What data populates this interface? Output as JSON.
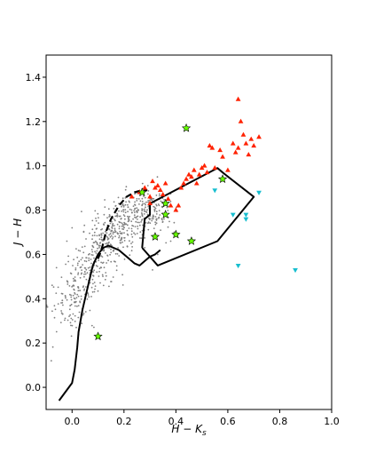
{
  "chart_data": {
    "type": "scatter",
    "xlabel_main": "H",
    "xlabel_sep": " − ",
    "xlabel_var": "K",
    "xlabel_sub": "s",
    "ylabel_main": "J",
    "ylabel_sep": " − ",
    "ylabel_var": "H",
    "xlim": [
      -0.1,
      1.0
    ],
    "ylim": [
      -0.1,
      1.5
    ],
    "x_ticks": [
      0.0,
      0.2,
      0.4,
      0.6,
      0.8,
      1.0
    ],
    "x_tick_labels": [
      "0.0",
      "0.2",
      "0.4",
      "0.6",
      "0.8",
      "1.0"
    ],
    "y_ticks": [
      0.0,
      0.2,
      0.4,
      0.6,
      0.8,
      1.0,
      1.2,
      1.4
    ],
    "y_tick_labels": [
      "0.0",
      "0.2",
      "0.4",
      "0.6",
      "0.8",
      "1.0",
      "1.2",
      "1.4"
    ],
    "grid": false,
    "colors": {
      "field": "#808080",
      "red": "#ff2200",
      "cyan": "#17becf",
      "green": "#66ff00",
      "line": "#000000"
    },
    "series": [
      {
        "kind": "field-stars",
        "marker": "dot",
        "center_curve": [
          [
            -0.02,
            0.3
          ],
          [
            0.0,
            0.4
          ],
          [
            0.05,
            0.5
          ],
          [
            0.1,
            0.6
          ],
          [
            0.15,
            0.68
          ],
          [
            0.2,
            0.75
          ],
          [
            0.26,
            0.8
          ],
          [
            0.32,
            0.8
          ]
        ],
        "count": 700,
        "outliers": [
          [
            -0.08,
            0.12
          ],
          [
            -0.06,
            0.54
          ],
          [
            -0.02,
            0.66
          ],
          [
            0.0,
            0.72
          ],
          [
            0.31,
            0.53
          ],
          [
            0.33,
            0.6
          ],
          [
            0.38,
            0.66
          ]
        ]
      },
      {
        "kind": "red-triangles",
        "marker": "triangle-up",
        "points": [
          [
            0.26,
            0.88
          ],
          [
            0.28,
            0.9
          ],
          [
            0.3,
            0.86
          ],
          [
            0.31,
            0.93
          ],
          [
            0.32,
            0.9
          ],
          [
            0.33,
            0.91
          ],
          [
            0.34,
            0.89
          ],
          [
            0.35,
            0.87
          ],
          [
            0.36,
            0.92
          ],
          [
            0.37,
            0.85
          ],
          [
            0.38,
            0.82
          ],
          [
            0.4,
            0.8
          ],
          [
            0.41,
            0.82
          ],
          [
            0.42,
            0.9
          ],
          [
            0.43,
            0.92
          ],
          [
            0.44,
            0.94
          ],
          [
            0.45,
            0.96
          ],
          [
            0.46,
            0.95
          ],
          [
            0.47,
            0.98
          ],
          [
            0.48,
            0.92
          ],
          [
            0.49,
            0.96
          ],
          [
            0.5,
            0.99
          ],
          [
            0.51,
            1.0
          ],
          [
            0.52,
            0.97
          ],
          [
            0.53,
            1.09
          ],
          [
            0.54,
            1.08
          ],
          [
            0.55,
            0.99
          ],
          [
            0.57,
            1.07
          ],
          [
            0.58,
            1.04
          ],
          [
            0.6,
            0.98
          ],
          [
            0.62,
            1.1
          ],
          [
            0.63,
            1.06
          ],
          [
            0.64,
            1.08
          ],
          [
            0.65,
            1.2
          ],
          [
            0.66,
            1.14
          ],
          [
            0.67,
            1.1
          ],
          [
            0.68,
            1.05
          ],
          [
            0.69,
            1.12
          ],
          [
            0.7,
            1.09
          ],
          [
            0.72,
            1.13
          ],
          [
            0.64,
            1.3
          ],
          [
            0.3,
            0.83
          ],
          [
            0.23,
            0.86
          ]
        ]
      },
      {
        "kind": "cyan-triangles",
        "marker": "triangle-down",
        "points": [
          [
            0.55,
            0.89
          ],
          [
            0.62,
            0.78
          ],
          [
            0.67,
            0.76
          ],
          [
            0.67,
            0.78
          ],
          [
            0.72,
            0.88
          ],
          [
            0.64,
            0.55
          ],
          [
            0.86,
            0.53
          ]
        ]
      },
      {
        "kind": "green-stars",
        "marker": "star",
        "points": [
          [
            0.44,
            1.17
          ],
          [
            0.58,
            0.94
          ],
          [
            0.27,
            0.88
          ],
          [
            0.36,
            0.83
          ],
          [
            0.36,
            0.78
          ],
          [
            0.32,
            0.68
          ],
          [
            0.4,
            0.69
          ],
          [
            0.46,
            0.66
          ],
          [
            0.1,
            0.23
          ]
        ]
      }
    ],
    "lines": [
      {
        "kind": "dwarf-locus",
        "style": "solid",
        "points": [
          [
            -0.05,
            -0.06
          ],
          [
            0.0,
            0.02
          ],
          [
            0.01,
            0.08
          ],
          [
            0.02,
            0.18
          ],
          [
            0.025,
            0.25
          ],
          [
            0.04,
            0.35
          ],
          [
            0.06,
            0.45
          ],
          [
            0.08,
            0.55
          ],
          [
            0.1,
            0.6
          ],
          [
            0.12,
            0.63
          ],
          [
            0.14,
            0.64
          ],
          [
            0.16,
            0.63
          ],
          [
            0.18,
            0.62
          ],
          [
            0.2,
            0.6
          ],
          [
            0.22,
            0.58
          ],
          [
            0.24,
            0.56
          ],
          [
            0.26,
            0.55
          ],
          [
            0.28,
            0.57
          ],
          [
            0.3,
            0.59
          ],
          [
            0.32,
            0.6
          ],
          [
            0.34,
            0.62
          ]
        ]
      },
      {
        "kind": "giant-locus",
        "style": "dashed",
        "points": [
          [
            0.1,
            0.58
          ],
          [
            0.11,
            0.61
          ],
          [
            0.12,
            0.65
          ],
          [
            0.13,
            0.7
          ],
          [
            0.15,
            0.76
          ],
          [
            0.18,
            0.82
          ],
          [
            0.21,
            0.86
          ],
          [
            0.24,
            0.88
          ],
          [
            0.27,
            0.89
          ],
          [
            0.29,
            0.89
          ]
        ]
      },
      {
        "kind": "polygon",
        "style": "solid",
        "closed": true,
        "points": [
          [
            0.27,
            0.63
          ],
          [
            0.28,
            0.76
          ],
          [
            0.3,
            0.78
          ],
          [
            0.3,
            0.83
          ],
          [
            0.56,
            0.99
          ],
          [
            0.58,
            0.97
          ],
          [
            0.7,
            0.86
          ],
          [
            0.56,
            0.66
          ],
          [
            0.33,
            0.55
          ],
          [
            0.27,
            0.63
          ]
        ]
      }
    ]
  }
}
